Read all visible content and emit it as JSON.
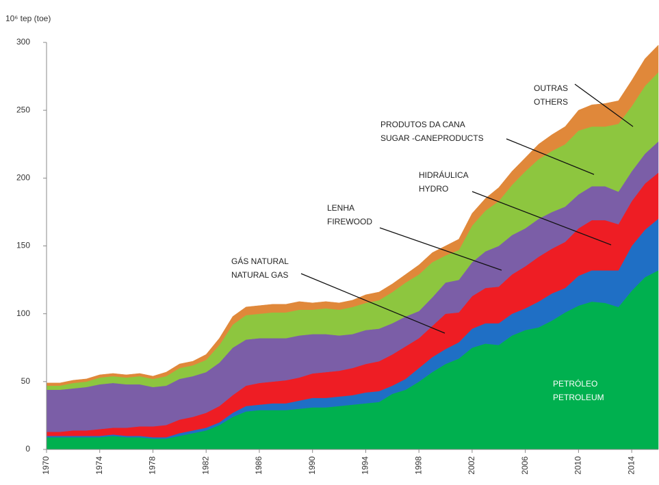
{
  "chart_data": {
    "type": "stacked_area",
    "y_label": "10⁶ tep (toe)",
    "x": [
      1970,
      1971,
      1972,
      1973,
      1974,
      1975,
      1976,
      1977,
      1978,
      1979,
      1980,
      1981,
      1982,
      1983,
      1984,
      1985,
      1986,
      1987,
      1988,
      1989,
      1990,
      1991,
      1992,
      1993,
      1994,
      1995,
      1996,
      1997,
      1998,
      1999,
      2000,
      2001,
      2002,
      2003,
      2004,
      2005,
      2006,
      2007,
      2008,
      2009,
      2010,
      2011,
      2012,
      2013,
      2014,
      2015,
      2016
    ],
    "xlim": [
      1970,
      2016
    ],
    "xticks": [
      1970,
      1974,
      1978,
      1982,
      1986,
      1990,
      1994,
      1998,
      2002,
      2006,
      2010,
      2014
    ],
    "ylim": [
      0,
      300
    ],
    "yticks": [
      0,
      50,
      100,
      150,
      200,
      250,
      300
    ],
    "series": [
      {
        "name": "PETROLEUM",
        "name_pt": "PETRÓLEO",
        "color": "#00b04f",
        "values": [
          9,
          9,
          9,
          9,
          9,
          10,
          9,
          9,
          8,
          8,
          10,
          12,
          14,
          18,
          24,
          28,
          29,
          29,
          29,
          30,
          31,
          31,
          32,
          33,
          34,
          35,
          41,
          44,
          50,
          57,
          63,
          67,
          75,
          78,
          77,
          84,
          88,
          90,
          95,
          101,
          106,
          109,
          108,
          105,
          117,
          127,
          132
        ]
      },
      {
        "name": "NATURAL GAS",
        "name_pt": "GÁS NATURAL",
        "color": "#1f6fc5",
        "values": [
          1,
          1,
          1,
          1,
          1,
          1,
          1,
          1,
          1,
          1,
          2,
          2,
          2,
          2,
          3,
          4,
          4,
          5,
          5,
          6,
          7,
          7,
          7,
          7,
          8,
          8,
          6,
          8,
          10,
          11,
          11,
          12,
          14,
          15,
          16,
          16,
          16,
          19,
          20,
          18,
          22,
          23,
          24,
          27,
          33,
          35,
          38
        ]
      },
      {
        "name": "HYDRO",
        "name_pt": "HIDRÁULICA",
        "color": "#ee1d24",
        "values": [
          3,
          3,
          4,
          4,
          5,
          5,
          6,
          7,
          8,
          9,
          10,
          10,
          11,
          12,
          13,
          15,
          16,
          16,
          17,
          17,
          18,
          19,
          19,
          20,
          21,
          22,
          23,
          24,
          22,
          23,
          26,
          22,
          24,
          26,
          27,
          29,
          31,
          33,
          33,
          34,
          35,
          37,
          37,
          34,
          33,
          34,
          34
        ]
      },
      {
        "name": "FIREWOOD",
        "name_pt": "LENHA",
        "color": "#7b5ea7",
        "values": [
          31,
          31,
          31,
          32,
          33,
          33,
          32,
          31,
          29,
          29,
          30,
          30,
          30,
          32,
          35,
          34,
          33,
          32,
          31,
          31,
          29,
          28,
          26,
          25,
          25,
          24,
          23,
          22,
          20,
          21,
          23,
          24,
          25,
          27,
          30,
          29,
          28,
          28,
          27,
          26,
          25,
          25,
          25,
          24,
          22,
          22,
          23
        ]
      },
      {
        "name": "SUGAR -CANEPRODUCTS",
        "name_pt": "PRODUTOS DA CANA",
        "color": "#8dc63f",
        "values": [
          3,
          3,
          4,
          4,
          5,
          5,
          5,
          6,
          6,
          7,
          8,
          8,
          9,
          13,
          17,
          18,
          18,
          19,
          19,
          19,
          18,
          19,
          19,
          20,
          20,
          21,
          23,
          25,
          27,
          26,
          20,
          22,
          27,
          30,
          33,
          37,
          42,
          44,
          45,
          46,
          47,
          44,
          44,
          50,
          48,
          50,
          51
        ]
      },
      {
        "name": "OTHERS",
        "name_pt": "OUTRAS",
        "color": "#e0883a",
        "values": [
          2,
          2,
          2,
          2,
          2,
          2,
          2,
          2,
          2,
          3,
          3,
          3,
          4,
          5,
          6,
          6,
          6,
          6,
          6,
          6,
          5,
          5,
          5,
          5,
          6,
          6,
          6,
          6,
          7,
          7,
          7,
          8,
          9,
          9,
          10,
          10,
          10,
          11,
          12,
          13,
          15,
          16,
          17,
          17,
          19,
          20,
          20
        ]
      }
    ]
  }
}
